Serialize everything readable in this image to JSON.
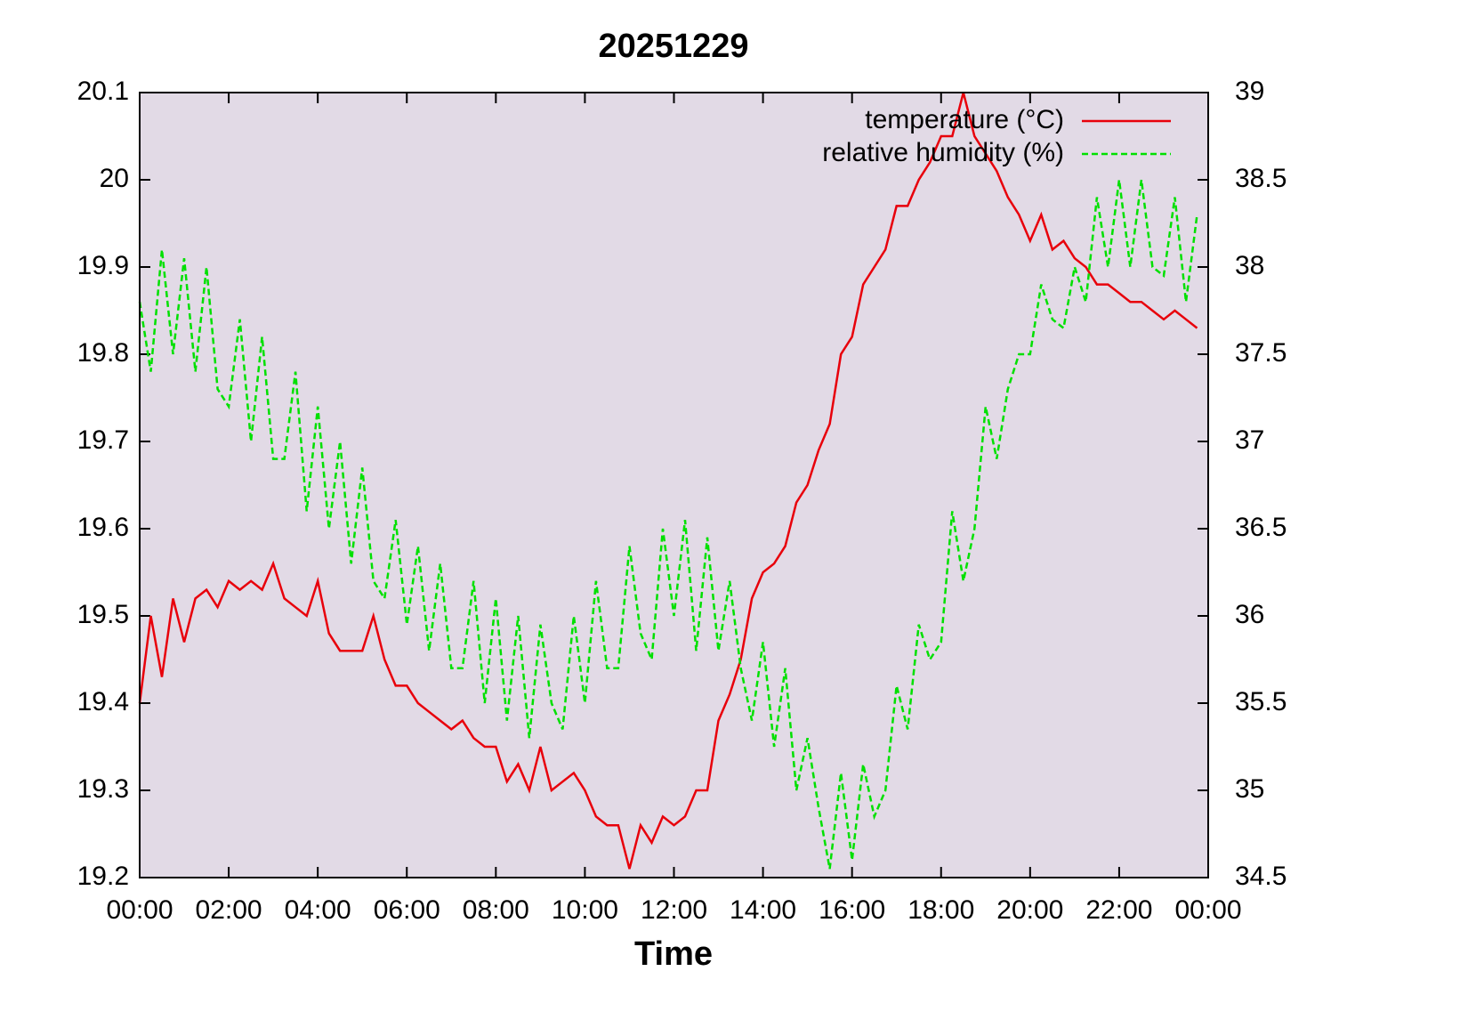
{
  "chart_data": {
    "type": "line",
    "title": "20251229",
    "xlabel": "Time",
    "x": [
      0,
      0.25,
      0.5,
      0.75,
      1,
      1.25,
      1.5,
      1.75,
      2,
      2.25,
      2.5,
      2.75,
      3,
      3.25,
      3.5,
      3.75,
      4,
      4.25,
      4.5,
      4.75,
      5,
      5.25,
      5.5,
      5.75,
      6,
      6.25,
      6.5,
      6.75,
      7,
      7.25,
      7.5,
      7.75,
      8,
      8.25,
      8.5,
      8.75,
      9,
      9.25,
      9.5,
      9.75,
      10,
      10.25,
      10.5,
      10.75,
      11,
      11.25,
      11.5,
      11.75,
      12,
      12.25,
      12.5,
      12.75,
      13,
      13.25,
      13.5,
      13.75,
      14,
      14.25,
      14.5,
      14.75,
      15,
      15.25,
      15.5,
      15.75,
      16,
      16.25,
      16.5,
      16.75,
      17,
      17.25,
      17.5,
      17.75,
      18,
      18.25,
      18.5,
      18.75,
      19,
      19.25,
      19.5,
      19.75,
      20,
      20.25,
      20.5,
      20.75,
      21,
      21.25,
      21.5,
      21.75,
      22,
      22.25,
      22.5,
      22.75,
      23,
      23.25,
      23.5,
      23.75
    ],
    "series": [
      {
        "name": "temperature (°C)",
        "color": "#e8000b",
        "axis": "y",
        "values": [
          19.4,
          19.5,
          19.43,
          19.52,
          19.47,
          19.52,
          19.53,
          19.51,
          19.54,
          19.53,
          19.54,
          19.53,
          19.56,
          19.52,
          19.51,
          19.5,
          19.54,
          19.48,
          19.46,
          19.46,
          19.46,
          19.5,
          19.45,
          19.42,
          19.42,
          19.4,
          19.39,
          19.38,
          19.37,
          19.38,
          19.36,
          19.35,
          19.35,
          19.31,
          19.33,
          19.3,
          19.35,
          19.3,
          19.31,
          19.32,
          19.3,
          19.27,
          19.26,
          19.26,
          19.21,
          19.26,
          19.24,
          19.27,
          19.26,
          19.27,
          19.3,
          19.3,
          19.38,
          19.41,
          19.45,
          19.52,
          19.55,
          19.56,
          19.58,
          19.63,
          19.65,
          19.69,
          19.72,
          19.8,
          19.82,
          19.88,
          19.9,
          19.92,
          19.97,
          19.97,
          20.0,
          20.02,
          20.05,
          20.05,
          20.1,
          20.05,
          20.03,
          20.01,
          19.98,
          19.96,
          19.93,
          19.96,
          19.92,
          19.93,
          19.91,
          19.9,
          19.88,
          19.88,
          19.87,
          19.86,
          19.86,
          19.85,
          19.84,
          19.85,
          19.84,
          19.83
        ]
      },
      {
        "name": "relative humidity (%)",
        "color": "#00e000",
        "axis": "y2",
        "values": [
          37.8,
          37.4,
          38.1,
          37.5,
          38.05,
          37.4,
          38.0,
          37.3,
          37.2,
          37.7,
          37.0,
          37.6,
          36.9,
          36.9,
          37.4,
          36.6,
          37.2,
          36.5,
          37.0,
          36.3,
          36.85,
          36.2,
          36.1,
          36.55,
          35.95,
          36.4,
          35.8,
          36.3,
          35.7,
          35.7,
          36.2,
          35.5,
          36.1,
          35.4,
          36.0,
          35.3,
          35.95,
          35.5,
          35.35,
          36.0,
          35.5,
          36.2,
          35.7,
          35.7,
          36.4,
          35.9,
          35.75,
          36.5,
          36.0,
          36.55,
          35.8,
          36.45,
          35.8,
          36.2,
          35.7,
          35.4,
          35.85,
          35.25,
          35.7,
          35.0,
          35.3,
          34.9,
          34.55,
          35.1,
          34.6,
          35.15,
          34.85,
          35.0,
          35.6,
          35.35,
          35.95,
          35.75,
          35.85,
          36.6,
          36.2,
          36.5,
          37.2,
          36.9,
          37.3,
          37.5,
          37.5,
          37.9,
          37.7,
          37.65,
          38.0,
          37.8,
          38.4,
          38.0,
          38.5,
          38.0,
          38.5,
          38.0,
          37.95,
          38.4,
          37.8,
          38.3
        ]
      }
    ],
    "xlim": [
      0,
      24
    ],
    "xticks": [
      {
        "value": 0,
        "label": "00:00"
      },
      {
        "value": 2,
        "label": "02:00"
      },
      {
        "value": 4,
        "label": "04:00"
      },
      {
        "value": 6,
        "label": "06:00"
      },
      {
        "value": 8,
        "label": "08:00"
      },
      {
        "value": 10,
        "label": "10:00"
      },
      {
        "value": 12,
        "label": "12:00"
      },
      {
        "value": 14,
        "label": "14:00"
      },
      {
        "value": 16,
        "label": "16:00"
      },
      {
        "value": 18,
        "label": "18:00"
      },
      {
        "value": 20,
        "label": "20:00"
      },
      {
        "value": 22,
        "label": "22:00"
      },
      {
        "value": 24,
        "label": "00:00"
      }
    ],
    "ylim": [
      19.2,
      20.1
    ],
    "yticks": [
      19.2,
      19.3,
      19.4,
      19.5,
      19.6,
      19.7,
      19.8,
      19.9,
      20,
      20.1
    ],
    "y2lim": [
      34.5,
      39
    ],
    "y2ticks": [
      34.5,
      35,
      35.5,
      36,
      36.5,
      37,
      37.5,
      38,
      38.5,
      39
    ],
    "legend": "upper right",
    "background": "#e2dae6"
  }
}
